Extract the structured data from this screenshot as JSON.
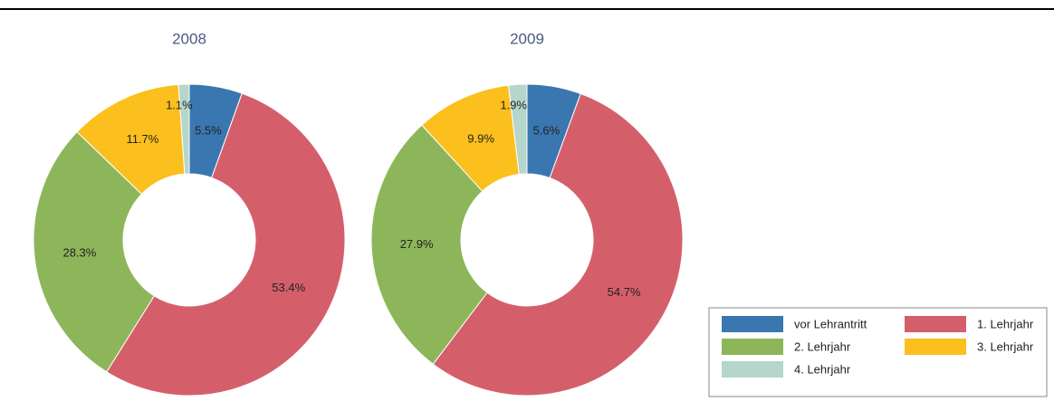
{
  "chart_data": [
    {
      "type": "pie",
      "title": "2008",
      "values": [
        5.5,
        53.4,
        28.3,
        11.7,
        1.1
      ],
      "value_labels": [
        "5.5%",
        "53.4%",
        "28.3%",
        "11.7%",
        "1.1%"
      ]
    },
    {
      "type": "pie",
      "title": "2009",
      "values": [
        5.6,
        54.7,
        27.9,
        9.9,
        1.9
      ],
      "value_labels": [
        "5.6%",
        "54.7%",
        "27.9%",
        "9.9%",
        "1.9%"
      ]
    }
  ],
  "legend": {
    "categories": [
      "vor Lehrantritt",
      "1. Lehrjahr",
      "2. Lehrjahr",
      "3. Lehrjahr",
      "4. Lehrjahr"
    ],
    "colors": [
      "#3a77b0",
      "#d45f6a",
      "#8db65a",
      "#fbbf1e",
      "#b4d6cb"
    ]
  }
}
